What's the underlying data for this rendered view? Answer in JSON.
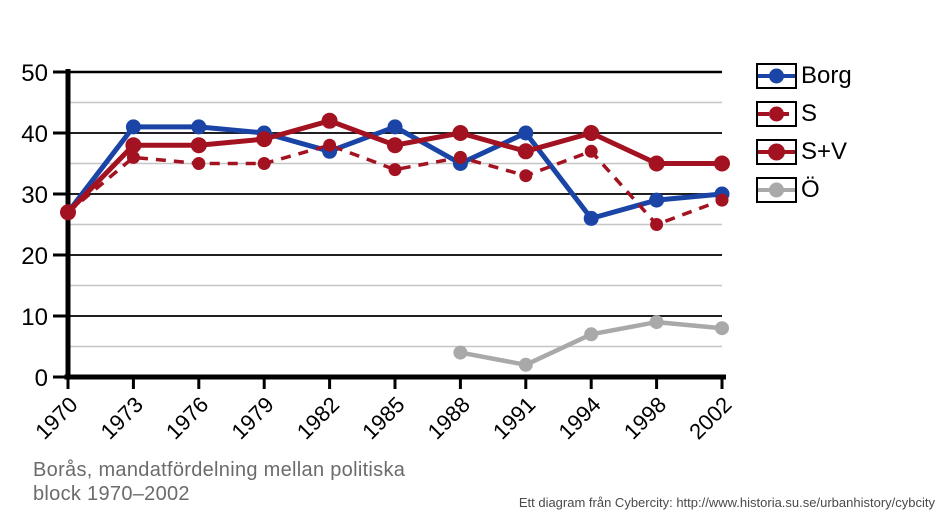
{
  "chart_data": {
    "type": "line",
    "title": "Borås, mandatfördelning mellan politiska block 1970–2002",
    "categories": [
      "1970",
      "1973",
      "1976",
      "1979",
      "1982",
      "1985",
      "1988",
      "1991",
      "1994",
      "1998",
      "2002"
    ],
    "series": [
      {
        "name": "Borg",
        "color": "#1a44a5",
        "style": "solid",
        "values": [
          27,
          41,
          41,
          40,
          37,
          41,
          35,
          40,
          26,
          29,
          30
        ]
      },
      {
        "name": "S",
        "color": "#a31220",
        "style": "dashed",
        "values": [
          27,
          36,
          35,
          35,
          38,
          34,
          36,
          33,
          37,
          25,
          29
        ]
      },
      {
        "name": "S+V",
        "color": "#a31220",
        "style": "solid",
        "values": [
          27,
          38,
          38,
          39,
          42,
          38,
          40,
          37,
          40,
          35,
          35
        ]
      },
      {
        "name": "Ö",
        "color": "#a9a9a9",
        "style": "solid",
        "values": [
          null,
          null,
          null,
          null,
          null,
          null,
          4,
          2,
          7,
          9,
          8
        ]
      }
    ],
    "xlabel": "",
    "ylabel": "",
    "ylim": [
      0,
      50
    ],
    "yticks": [
      0,
      10,
      20,
      30,
      40,
      50
    ],
    "minor_gridlines": [
      5,
      15,
      25,
      35,
      45
    ],
    "grid": true,
    "legend_position": "right",
    "colors": {
      "major_grid": "#000000",
      "minor_grid": "#c6c6c6",
      "axis": "#000000"
    }
  },
  "caption": {
    "line1": "Borås, mandatfördelning mellan politiska",
    "line2": "block 1970–2002"
  },
  "footer": {
    "text": "Ett diagram från Cybercity: http://www.historia.su.se/urbanhistory/cybcity"
  }
}
